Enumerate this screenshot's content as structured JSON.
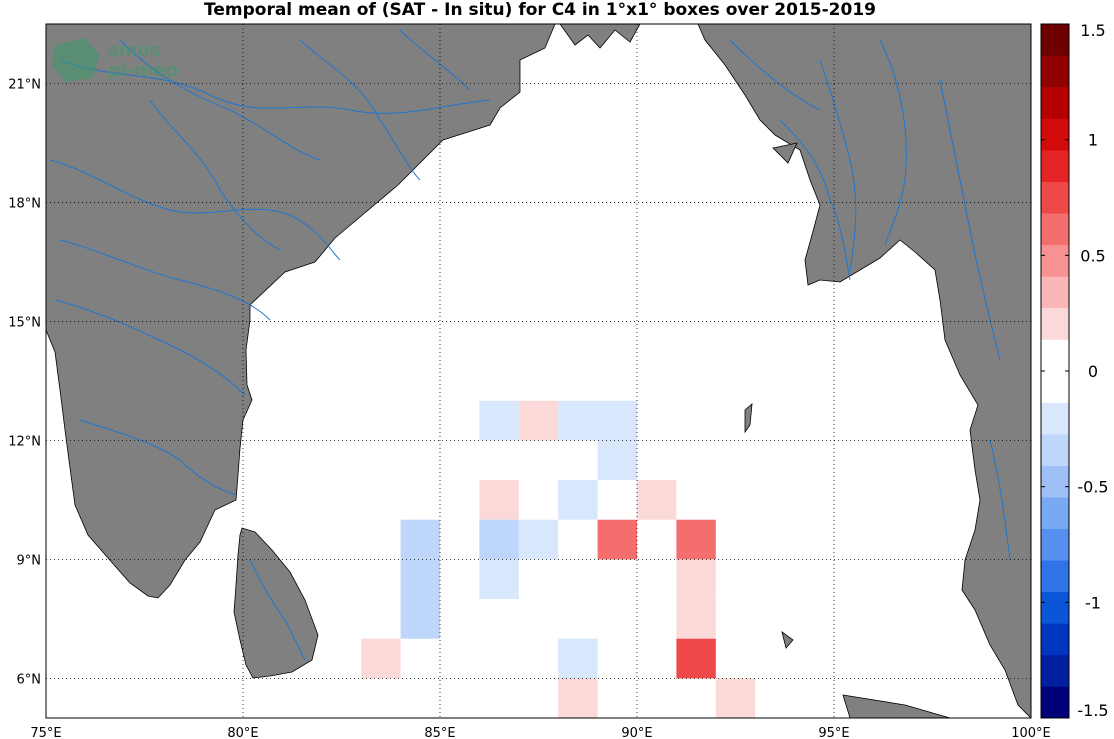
{
  "title": "Temporal mean of (SAT - In situ) for C4 in 1°x1° boxes over 2015-2019",
  "watermark": {
    "line1": "smos",
    "line2": "pi-mep"
  },
  "map": {
    "lon_range": [
      75,
      100
    ],
    "lat_range": [
      5,
      22.5
    ],
    "lon_ticks": [
      75,
      80,
      85,
      90,
      95,
      100
    ],
    "lat_ticks": [
      6,
      9,
      12,
      15,
      18,
      21
    ],
    "lon_labels": [
      "75°E",
      "80°E",
      "85°E",
      "90°E",
      "95°E",
      "100°E"
    ],
    "lat_labels": [
      "6°N",
      "9°N",
      "12°N",
      "15°N",
      "18°N",
      "21°N"
    ],
    "land_color": "#808080",
    "river_color": "#1f77d0",
    "grid": true
  },
  "colorbar": {
    "range": [
      -1.5,
      1.5
    ],
    "ticks": [
      -1.5,
      -1,
      -0.5,
      0,
      0.5,
      1,
      1.5
    ],
    "tick_labels": [
      "-1.5",
      "-1",
      "-0.5",
      "0",
      "0.5",
      "1",
      "1.5"
    ],
    "colors": [
      "#00007a",
      "#0020a0",
      "#0035c0",
      "#0a55d8",
      "#2f73e6",
      "#5590ee",
      "#7aa9f3",
      "#9ec0f7",
      "#bdd6fa",
      "#d9e7fc",
      "#ffffff",
      "#ffffff",
      "#fcd9d9",
      "#fbb7b7",
      "#f89292",
      "#f46e6e",
      "#ef4848",
      "#e52525",
      "#d30a0a",
      "#b40000",
      "#900000",
      "#6e0000"
    ]
  },
  "chart_data": {
    "type": "heatmap",
    "title": "Temporal mean of (SAT - In situ) for C4 in 1°x1° boxes over 2015-2019",
    "cell_size_deg": 1,
    "cells": [
      {
        "lon": 86,
        "lat": 12,
        "value": -0.15
      },
      {
        "lon": 87,
        "lat": 12,
        "value": 0.2
      },
      {
        "lon": 88,
        "lat": 12,
        "value": -0.15
      },
      {
        "lon": 89,
        "lat": 12,
        "value": -0.15
      },
      {
        "lon": 89,
        "lat": 11,
        "value": -0.15
      },
      {
        "lon": 86,
        "lat": 10,
        "value": 0.2
      },
      {
        "lon": 88,
        "lat": 10,
        "value": -0.15
      },
      {
        "lon": 90,
        "lat": 10,
        "value": 0.2
      },
      {
        "lon": 84,
        "lat": 9,
        "value": -0.3
      },
      {
        "lon": 86,
        "lat": 9,
        "value": -0.35
      },
      {
        "lon": 87,
        "lat": 9,
        "value": -0.15
      },
      {
        "lon": 89,
        "lat": 9,
        "value": 0.55
      },
      {
        "lon": 91,
        "lat": 9,
        "value": 0.55
      },
      {
        "lon": 84,
        "lat": 8,
        "value": -0.3
      },
      {
        "lon": 86,
        "lat": 8,
        "value": -0.15
      },
      {
        "lon": 91,
        "lat": 8,
        "value": 0.2
      },
      {
        "lon": 84,
        "lat": 7,
        "value": -0.3
      },
      {
        "lon": 91,
        "lat": 7,
        "value": 0.2
      },
      {
        "lon": 83,
        "lat": 6,
        "value": 0.2
      },
      {
        "lon": 88,
        "lat": 6,
        "value": -0.15
      },
      {
        "lon": 91,
        "lat": 6,
        "value": 0.75
      },
      {
        "lon": 88,
        "lat": 5,
        "value": 0.2
      },
      {
        "lon": 92,
        "lat": 5,
        "value": 0.2
      }
    ],
    "colorbar_range": [
      -1.5,
      1.5
    ]
  }
}
